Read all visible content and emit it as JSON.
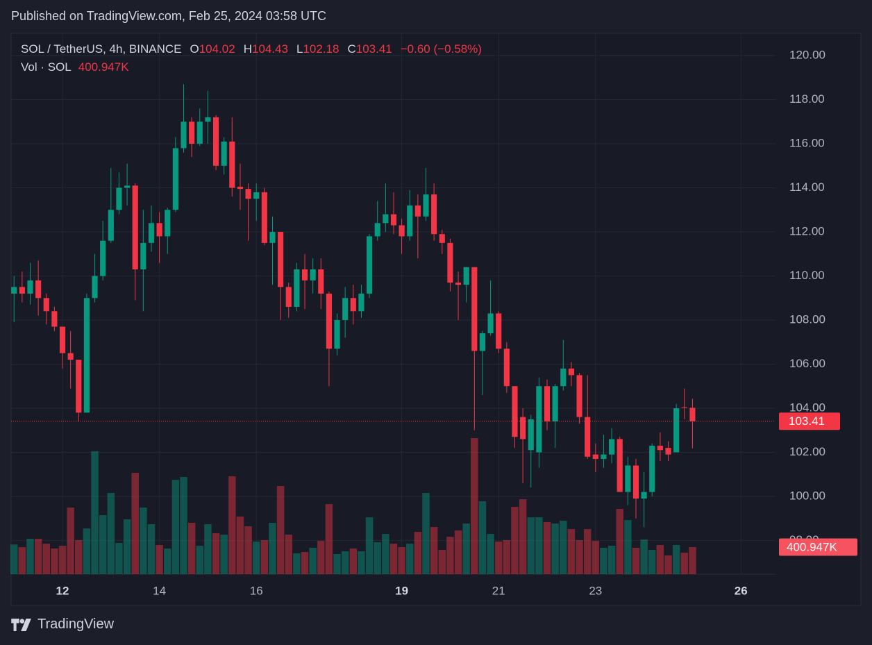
{
  "header": {
    "published": "Published on TradingView.com, Feb 25, 2024 03:58 UTC"
  },
  "footer": {
    "brand": "TradingView"
  },
  "chart_data": {
    "type": "candlestick",
    "symbol": "SOL / TetherUS, 4h, BINANCE",
    "ohlc_labels": [
      "O",
      "H",
      "L",
      "C"
    ],
    "change": "−0.60 (−0.58%)",
    "up_color": "#089981",
    "down_color": "#f23645",
    "grid": true,
    "x": [
      "2024-02-11T00:00",
      "2024-02-11T04:00",
      "2024-02-11T08:00",
      "2024-02-11T12:00",
      "2024-02-11T16:00",
      "2024-02-11T20:00",
      "2024-02-12T00:00",
      "2024-02-12T04:00",
      "2024-02-12T08:00",
      "2024-02-12T12:00",
      "2024-02-12T16:00",
      "2024-02-12T20:00",
      "2024-02-13T00:00",
      "2024-02-13T04:00",
      "2024-02-13T08:00",
      "2024-02-13T12:00",
      "2024-02-13T16:00",
      "2024-02-13T20:00",
      "2024-02-14T00:00",
      "2024-02-14T04:00",
      "2024-02-14T08:00",
      "2024-02-14T12:00",
      "2024-02-14T16:00",
      "2024-02-14T20:00",
      "2024-02-15T00:00",
      "2024-02-15T04:00",
      "2024-02-15T08:00",
      "2024-02-15T12:00",
      "2024-02-15T16:00",
      "2024-02-15T20:00",
      "2024-02-16T00:00",
      "2024-02-16T04:00",
      "2024-02-16T08:00",
      "2024-02-16T12:00",
      "2024-02-16T16:00",
      "2024-02-16T20:00",
      "2024-02-17T00:00",
      "2024-02-17T04:00",
      "2024-02-17T08:00",
      "2024-02-17T12:00",
      "2024-02-17T16:00",
      "2024-02-17T20:00",
      "2024-02-18T00:00",
      "2024-02-18T04:00",
      "2024-02-18T08:00",
      "2024-02-18T12:00",
      "2024-02-18T16:00",
      "2024-02-18T20:00",
      "2024-02-19T00:00",
      "2024-02-19T04:00",
      "2024-02-19T08:00",
      "2024-02-19T12:00",
      "2024-02-19T16:00",
      "2024-02-19T20:00",
      "2024-02-20T00:00",
      "2024-02-20T04:00",
      "2024-02-20T08:00",
      "2024-02-20T12:00",
      "2024-02-20T16:00",
      "2024-02-20T20:00",
      "2024-02-21T00:00",
      "2024-02-21T04:00",
      "2024-02-21T08:00",
      "2024-02-21T12:00",
      "2024-02-21T16:00",
      "2024-02-21T20:00",
      "2024-02-22T00:00",
      "2024-02-22T04:00",
      "2024-02-22T08:00",
      "2024-02-22T12:00",
      "2024-02-22T16:00",
      "2024-02-22T20:00",
      "2024-02-23T00:00",
      "2024-02-23T04:00",
      "2024-02-23T08:00",
      "2024-02-23T12:00",
      "2024-02-23T16:00",
      "2024-02-23T20:00",
      "2024-02-24T00:00",
      "2024-02-24T04:00",
      "2024-02-24T08:00",
      "2024-02-24T12:00",
      "2024-02-24T16:00",
      "2024-02-24T20:00",
      "2024-02-25T00:00"
    ],
    "open": [
      109.2,
      109.5,
      109.2,
      109.8,
      109.0,
      108.4,
      107.7,
      106.5,
      106.2,
      103.8,
      109.0,
      110.0,
      111.6,
      113.0,
      114.0,
      114.1,
      110.3,
      111.5,
      112.4,
      111.8,
      113.0,
      115.8,
      117.0,
      116.0,
      117.0,
      117.2,
      115.0,
      116.1,
      114.05,
      113.95,
      113.5,
      113.8,
      111.5,
      112.0,
      109.5,
      108.6,
      110.3,
      109.8,
      110.3,
      109.2,
      106.7,
      108.0,
      109.0,
      108.4,
      109.2,
      111.8,
      112.4,
      112.8,
      112.3,
      111.8,
      113.2,
      112.7,
      113.7,
      111.9,
      111.5,
      109.7,
      109.6,
      110.4,
      106.6,
      107.4,
      108.3,
      106.7,
      105.0,
      103.6,
      102.1,
      102.0,
      105.0,
      103.4,
      105.0,
      105.8,
      105.5,
      103.6,
      101.9,
      101.7,
      101.9,
      102.6,
      100.2,
      101.4,
      99.9,
      100.2,
      102.3,
      102.2,
      102.0,
      104.05,
      104.02
    ],
    "high": [
      110.0,
      110.2,
      110.6,
      110.7,
      109.2,
      108.6,
      107.7,
      107.5,
      106.2,
      109.2,
      111.0,
      112.5,
      114.9,
      114.7,
      115.1,
      114.2,
      113.0,
      113.2,
      112.9,
      113.1,
      116.3,
      118.7,
      117.2,
      117.6,
      118.4,
      117.3,
      116.3,
      117.2,
      115.1,
      114.2,
      114.2,
      114.0,
      112.7,
      112.0,
      109.7,
      110.6,
      111.0,
      110.8,
      110.8,
      109.3,
      108.3,
      109.5,
      109.6,
      109.6,
      111.9,
      113.4,
      114.2,
      113.8,
      112.6,
      113.9,
      113.7,
      114.9,
      114.2,
      112.1,
      111.7,
      110.2,
      110.4,
      110.4,
      107.5,
      109.8,
      108.4,
      107.0,
      105.0,
      104.0,
      103.7,
      105.4,
      105.3,
      105.1,
      107.1,
      106.1,
      105.6,
      105.5,
      102.4,
      102.8,
      103.1,
      102.7,
      101.8,
      101.7,
      101.1,
      102.4,
      102.9,
      102.5,
      104.2,
      104.9,
      104.43
    ],
    "low": [
      107.9,
      108.8,
      108.7,
      108.2,
      107.8,
      107.5,
      105.8,
      104.9,
      103.4,
      103.8,
      108.8,
      109.8,
      111.5,
      112.8,
      113.2,
      108.9,
      108.4,
      111.1,
      110.6,
      111.0,
      112.9,
      115.6,
      115.4,
      115.9,
      116.0,
      114.8,
      114.6,
      113.6,
      113.0,
      111.6,
      112.5,
      111.4,
      109.6,
      108.0,
      108.1,
      108.4,
      108.5,
      109.2,
      108.5,
      105.0,
      106.4,
      107.2,
      107.8,
      108.1,
      109.0,
      111.6,
      112.0,
      111.9,
      111.0,
      111.6,
      110.8,
      112.5,
      111.6,
      111.0,
      109.3,
      108.0,
      108.8,
      103.0,
      104.6,
      107.3,
      106.5,
      104.7,
      102.2,
      100.6,
      100.4,
      101.3,
      103.0,
      102.2,
      104.8,
      105.0,
      103.3,
      101.7,
      101.1,
      101.3,
      101.5,
      100.2,
      99.6,
      99.0,
      98.6,
      100.0,
      101.6,
      101.6,
      102.0,
      103.5,
      102.18
    ],
    "close": [
      109.5,
      109.2,
      109.8,
      109.0,
      108.4,
      107.7,
      106.5,
      106.2,
      103.8,
      109.0,
      110.0,
      111.6,
      113.0,
      114.0,
      114.1,
      110.3,
      111.5,
      112.4,
      111.8,
      113.0,
      115.8,
      117.0,
      116.0,
      117.0,
      117.2,
      115.0,
      116.1,
      114.0,
      113.95,
      113.5,
      113.8,
      111.5,
      112.0,
      109.5,
      108.6,
      110.3,
      109.8,
      110.3,
      109.2,
      106.7,
      108.0,
      109.0,
      108.4,
      109.2,
      111.8,
      112.4,
      112.8,
      112.3,
      111.8,
      113.2,
      112.7,
      113.7,
      111.9,
      111.5,
      109.7,
      109.6,
      110.4,
      106.6,
      107.4,
      108.3,
      106.7,
      105.0,
      102.7,
      102.6,
      103.5,
      105.0,
      103.4,
      105.0,
      105.8,
      105.5,
      103.6,
      101.8,
      101.7,
      101.9,
      102.6,
      100.2,
      101.4,
      99.9,
      100.2,
      102.3,
      102.1,
      101.9,
      104.0,
      104.02,
      103.41
    ],
    "xlim": [
      "2024-02-10T22:33",
      "2024-02-26T17:07"
    ],
    "xticks": [
      {
        "value": "2024-02-12T00:00",
        "label": "12"
      },
      {
        "value": "2024-02-14T00:00",
        "label": "14"
      },
      {
        "value": "2024-02-16T00:00",
        "label": "16"
      },
      {
        "value": "2024-02-19T00:00",
        "label": "19"
      },
      {
        "value": "2024-02-21T00:00",
        "label": "21"
      },
      {
        "value": "2024-02-23T00:00",
        "label": "23"
      },
      {
        "value": "2024-02-26T00:00",
        "label": "26"
      }
    ],
    "ylim": [
      96.47,
      121.01
    ],
    "yticks": [
      {
        "value": 98,
        "label": "98.00"
      },
      {
        "value": 100,
        "label": "100.00"
      },
      {
        "value": 102,
        "label": "102.00"
      },
      {
        "value": 104,
        "label": "104.00"
      },
      {
        "value": 106,
        "label": "106.00"
      },
      {
        "value": 108,
        "label": "108.00"
      },
      {
        "value": 110,
        "label": "110.00"
      },
      {
        "value": 112,
        "label": "112.00"
      },
      {
        "value": 114,
        "label": "114.00"
      },
      {
        "value": 116,
        "label": "116.00"
      },
      {
        "value": 118,
        "label": "118.00"
      },
      {
        "value": 120,
        "label": "120.00"
      }
    ],
    "volume": {
      "name": "Vol · SOL",
      "y2lim": [
        0,
        4000000
      ],
      "values": [
        440000,
        400000,
        525000,
        525000,
        452000,
        380000,
        420000,
        987000,
        504000,
        678000,
        1820000,
        874000,
        1203000,
        463000,
        812000,
        1501000,
        987000,
        740000,
        432000,
        380000,
        1398000,
        1439000,
        761000,
        421000,
        740000,
        607000,
        586000,
        1450000,
        853000,
        709000,
        483000,
        504000,
        761000,
        1306000,
        586000,
        308000,
        329000,
        391000,
        493000,
        1038000,
        298000,
        339000,
        380000,
        339000,
        843000,
        473000,
        596000,
        452000,
        401000,
        452000,
        627000,
        1203000,
        699000,
        360000,
        555000,
        648000,
        750000,
        2015000,
        1079000,
        596000,
        483000,
        504000,
        997000,
        1110000,
        843000,
        843000,
        771000,
        750000,
        792000,
        668000,
        504000,
        668000,
        493000,
        391000,
        421000,
        966000,
        802000,
        391000,
        514000,
        360000,
        432000,
        278000,
        432000,
        319000,
        400947
      ],
      "value_labels": [
        null,
        null,
        null,
        null,
        null,
        null,
        null,
        null,
        null,
        null,
        null,
        null,
        null,
        null,
        null,
        null,
        null,
        null,
        null,
        null,
        null,
        null,
        null,
        null,
        null,
        null,
        null,
        null,
        null,
        null,
        null,
        null,
        null,
        null,
        null,
        null,
        null,
        null,
        null,
        null,
        null,
        null,
        null,
        null,
        null,
        null,
        null,
        null,
        null,
        null,
        null,
        null,
        null,
        null,
        null,
        null,
        null,
        null,
        null,
        null,
        null,
        null,
        null,
        null,
        null,
        null,
        null,
        null,
        null,
        null,
        null,
        null,
        null,
        null,
        null,
        null,
        null,
        null,
        null,
        null,
        null,
        null,
        null,
        null,
        "400.947K"
      ]
    }
  }
}
